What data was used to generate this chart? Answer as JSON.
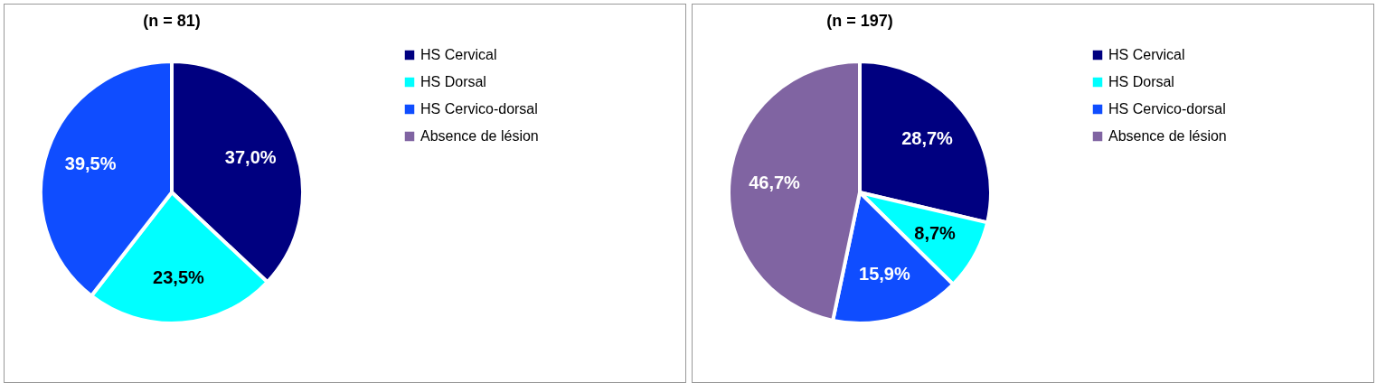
{
  "chart_data": [
    {
      "type": "pie",
      "title": "(n = 81)",
      "categories": [
        "HS Cervical",
        "HS Dorsal",
        "HS Cervico-dorsal",
        "Absence de lésion"
      ],
      "values": [
        37.0,
        23.5,
        39.5,
        0
      ],
      "colors": [
        "#000080",
        "#00ffff",
        "#0f4dff",
        "#8064a2"
      ],
      "value_labels": [
        "37,0%",
        "23,5%",
        "39,5%",
        null
      ],
      "legend": "right"
    },
    {
      "type": "pie",
      "title": "(n = 197)",
      "categories": [
        "HS Cervical",
        "HS Dorsal",
        "HS Cervico-dorsal",
        "Absence de lésion"
      ],
      "values": [
        28.7,
        8.7,
        15.9,
        46.7
      ],
      "colors": [
        "#000080",
        "#00ffff",
        "#0f4dff",
        "#8064a2"
      ],
      "value_labels": [
        "28,7%",
        "8,7%",
        "15,9%",
        "46,7%"
      ],
      "legend": "right"
    }
  ]
}
